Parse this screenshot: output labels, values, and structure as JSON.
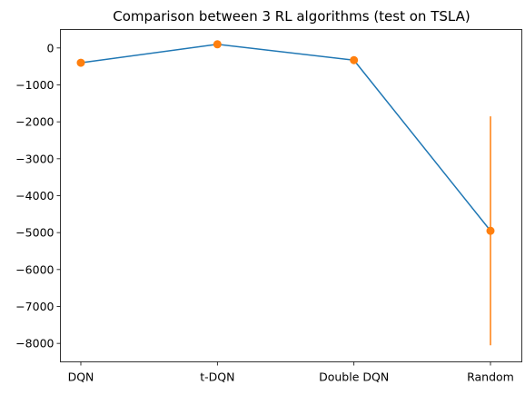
{
  "chart_data": {
    "type": "line",
    "title": "Comparison between 3 RL algorithms (test on TSLA)",
    "xlabel": "",
    "ylabel": "",
    "categories": [
      "DQN",
      "t-DQN",
      "Double DQN",
      "Random"
    ],
    "series": [
      {
        "values": [
          -400,
          100,
          -330,
          -4950
        ],
        "error_bars": [
          {
            "category": "Random",
            "low": -8050,
            "high": -1850
          }
        ]
      }
    ],
    "ylim": [
      -8500,
      500
    ],
    "yticks": [
      0,
      -1000,
      -2000,
      -3000,
      -4000,
      -5000,
      -6000,
      -7000,
      -8000
    ],
    "ytick_labels": [
      "0",
      "−1000",
      "−2000",
      "−3000",
      "−4000",
      "−5000",
      "−6000",
      "−7000",
      "−8000"
    ],
    "grid": false,
    "legend": "none",
    "line_color": "#1f77b4",
    "marker_color": "#ff7f0e"
  }
}
